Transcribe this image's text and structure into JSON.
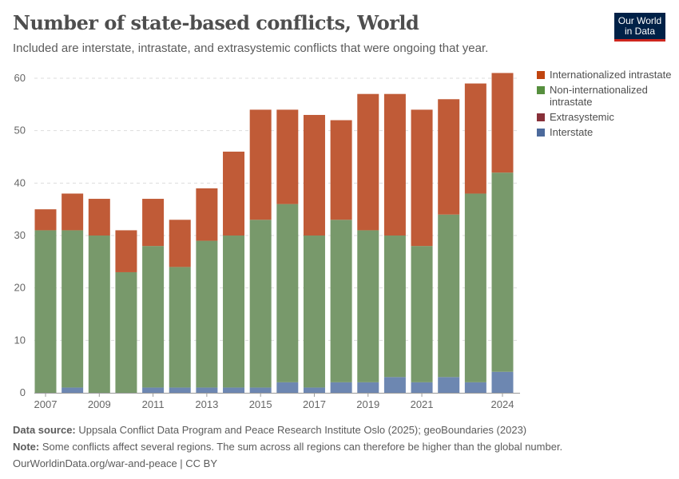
{
  "header": {
    "title": "Number of state-based conflicts, World",
    "subtitle": "Included are interstate, intrastate, and extrasystemic conflicts that were ongoing that year.",
    "logo": "Our World in Data"
  },
  "footer": {
    "source_label": "Data source:",
    "source": "Uppsala Conflict Data Program and Peace Research Institute Oslo (2025); geoBoundaries (2023)",
    "note_label": "Note:",
    "note": "Some conflicts affect several regions. The sum across all regions can therefore be higher than the global number.",
    "url": "OurWorldinData.org/war-and-peace | CC BY"
  },
  "chart_data": {
    "type": "bar",
    "stacked": true,
    "title": "Number of state-based conflicts, World",
    "x": [
      2007,
      2008,
      2009,
      2010,
      2011,
      2012,
      2013,
      2014,
      2015,
      2016,
      2017,
      2018,
      2019,
      2020,
      2021,
      2022,
      2023,
      2024
    ],
    "xticks": [
      "2007",
      "2009",
      "2011",
      "2013",
      "2015",
      "2017",
      "2019",
      "2021",
      "2024"
    ],
    "yticks": [
      0,
      10,
      20,
      30,
      40,
      50,
      60
    ],
    "ylim": [
      0,
      62
    ],
    "grid": "horizontal dashed",
    "legend": "right",
    "series": [
      {
        "name": "Interstate",
        "color": "#6d87b1",
        "values": [
          0,
          1,
          0,
          0,
          1,
          1,
          1,
          1,
          1,
          2,
          1,
          2,
          2,
          3,
          2,
          3,
          2,
          4
        ]
      },
      {
        "name": "Extrasystemic",
        "color": "#883039",
        "values": [
          0,
          0,
          0,
          0,
          0,
          0,
          0,
          0,
          0,
          0,
          0,
          0,
          0,
          0,
          0,
          0,
          0,
          0
        ]
      },
      {
        "name": "Non-internationalized intrastate",
        "color": "#78996b",
        "values": [
          31,
          30,
          30,
          23,
          27,
          23,
          28,
          29,
          32,
          34,
          29,
          31,
          29,
          27,
          26,
          31,
          36,
          38
        ]
      },
      {
        "name": "Internationalized intrastate",
        "color": "#c05b37",
        "values": [
          4,
          7,
          7,
          8,
          9,
          9,
          10,
          16,
          21,
          18,
          23,
          19,
          26,
          27,
          26,
          22,
          21,
          19
        ]
      }
    ],
    "legend_order": [
      "Internationalized intrastate",
      "Non-internationalized intrastate",
      "Extrasystemic",
      "Interstate"
    ],
    "legend_colors": [
      "#c0440f",
      "#568f3e",
      "#883039",
      "#4c6a9c"
    ]
  }
}
